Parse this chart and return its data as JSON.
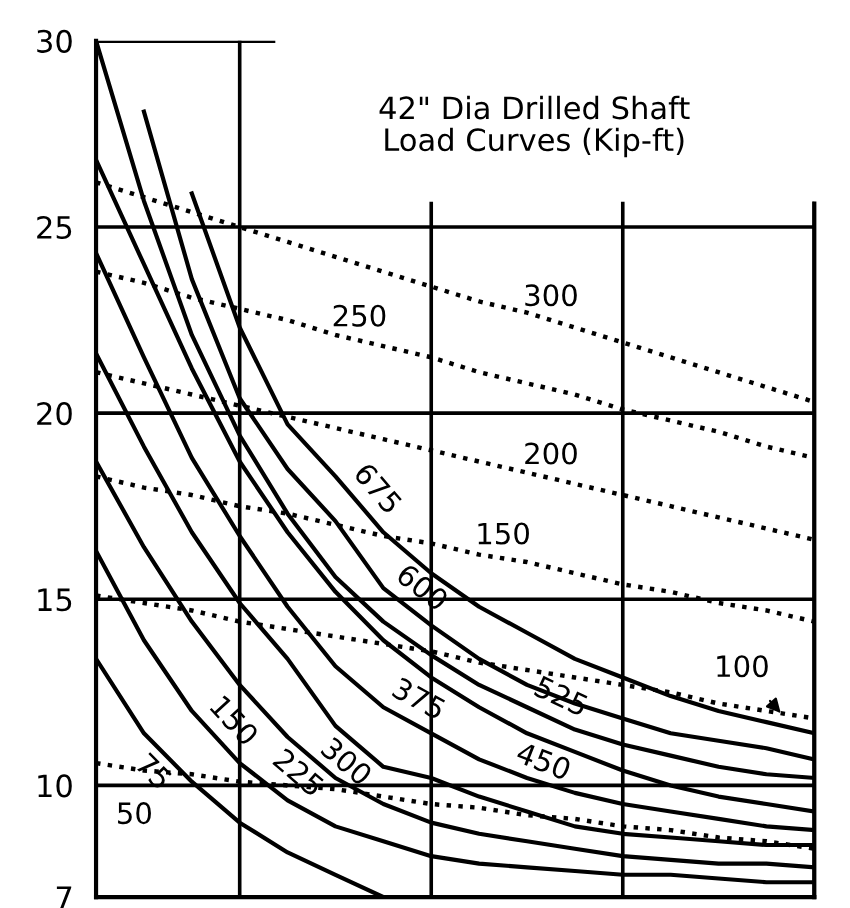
{
  "chart_data": {
    "type": "line",
    "title": "42\" Dia Drilled Shaft\nLoad Curves (Kip-ft)",
    "categories": [
      null,
      null,
      null,
      null,
      null,
      null,
      null,
      null,
      null,
      null,
      null,
      null,
      null,
      null,
      null,
      null
    ],
    "ylim": [
      7,
      30
    ],
    "yticks": [
      7,
      10,
      15,
      20,
      25,
      30
    ],
    "grid": true,
    "legend": false,
    "marker": "none",
    "series": [
      {
        "name": "75",
        "color": "#000000",
        "line_style": "solid",
        "values": [
          13.4,
          11.4,
          10.1,
          9.0,
          8.2,
          7.6,
          7.0,
          null,
          null,
          null,
          null,
          null,
          null,
          null,
          null,
          null
        ]
      },
      {
        "name": "150",
        "color": "#000000",
        "line_style": "solid",
        "values": [
          16.3,
          13.9,
          12.0,
          10.6,
          9.6,
          8.9,
          8.5,
          8.1,
          7.9,
          7.8,
          7.7,
          7.6,
          7.6,
          7.5,
          7.4,
          7.4
        ]
      },
      {
        "name": "225",
        "color": "#000000",
        "line_style": "solid",
        "values": [
          18.7,
          16.4,
          14.4,
          12.7,
          11.3,
          10.2,
          9.5,
          9.0,
          8.7,
          8.5,
          8.3,
          8.1,
          8.0,
          7.9,
          7.9,
          7.8
        ]
      },
      {
        "name": "300",
        "color": "#000000",
        "line_style": "solid",
        "values": [
          21.6,
          19.1,
          16.8,
          14.9,
          13.4,
          11.6,
          10.5,
          10.2,
          9.7,
          9.3,
          8.9,
          8.7,
          8.6,
          8.5,
          8.4,
          8.4
        ]
      },
      {
        "name": "375",
        "color": "#000000",
        "line_style": "solid",
        "values": [
          24.3,
          21.5,
          18.8,
          16.7,
          14.8,
          13.2,
          12.1,
          11.4,
          10.7,
          10.2,
          9.8,
          9.5,
          9.3,
          9.1,
          8.9,
          8.8
        ]
      },
      {
        "name": "450",
        "color": "#000000",
        "line_style": "solid",
        "values": [
          26.8,
          24.0,
          21.2,
          18.7,
          16.8,
          15.2,
          13.9,
          12.9,
          12.1,
          11.4,
          10.9,
          10.4,
          10.0,
          9.7,
          9.5,
          9.3
        ]
      },
      {
        "name": "525",
        "color": "#000000",
        "line_style": "solid",
        "values": [
          30,
          25.7,
          22.1,
          19.4,
          17.3,
          15.6,
          14.4,
          13.5,
          12.7,
          12.1,
          11.5,
          11.1,
          10.8,
          10.5,
          10.3,
          10.2
        ]
      },
      {
        "name": "600",
        "color": "#000000",
        "line_style": "solid",
        "values": [
          null,
          28.1,
          23.6,
          20.4,
          18.5,
          17.1,
          15.3,
          14.3,
          13.4,
          12.7,
          12.2,
          11.8,
          11.4,
          11.2,
          11.0,
          10.7
        ]
      },
      {
        "name": "675",
        "color": "#000000",
        "line_style": "solid",
        "values": [
          null,
          null,
          25.9,
          22.3,
          19.7,
          18.3,
          16.8,
          15.7,
          14.8,
          14.1,
          13.4,
          12.9,
          12.4,
          12.0,
          11.7,
          11.4
        ]
      },
      {
        "name": "50",
        "color": "#000000",
        "line_style": "dotted",
        "values": [
          10.6,
          10.4,
          10.3,
          10.1,
          10.0,
          9.9,
          9.7,
          9.5,
          9.4,
          9.2,
          9.1,
          8.9,
          8.8,
          8.6,
          8.5,
          8.3
        ]
      },
      {
        "name": "100",
        "color": "#000000",
        "line_style": "dotted",
        "values": [
          15.1,
          14.9,
          14.7,
          14.4,
          14.2,
          14.0,
          13.8,
          13.6,
          13.3,
          13.1,
          12.9,
          12.7,
          12.5,
          12.2,
          12.0,
          11.8
        ]
      },
      {
        "name": "150",
        "color": "#000000",
        "line_style": "dotted",
        "values": [
          18.3,
          18.0,
          17.8,
          17.5,
          17.3,
          17.0,
          16.7,
          16.5,
          16.2,
          16.0,
          15.7,
          15.4,
          15.2,
          14.9,
          14.7,
          14.4
        ]
      },
      {
        "name": "200",
        "color": "#000000",
        "line_style": "dotted",
        "values": [
          21.1,
          20.8,
          20.5,
          20.2,
          19.9,
          19.6,
          19.3,
          19.0,
          18.7,
          18.4,
          18.1,
          17.8,
          17.5,
          17.2,
          16.9,
          16.6
        ]
      },
      {
        "name": "250",
        "color": "#000000",
        "line_style": "dotted",
        "values": [
          23.8,
          23.5,
          23.1,
          22.8,
          22.5,
          22.1,
          21.8,
          21.5,
          21.1,
          20.8,
          20.5,
          20.1,
          19.8,
          19.5,
          19.1,
          18.8
        ]
      },
      {
        "name": "300",
        "color": "#000000",
        "line_style": "dotted",
        "values": [
          26.2,
          25.8,
          25.4,
          25.0,
          24.6,
          24.2,
          23.8,
          23.4,
          23.0,
          22.7,
          22.3,
          21.9,
          21.5,
          21.1,
          20.7,
          20.3
        ]
      }
    ]
  }
}
